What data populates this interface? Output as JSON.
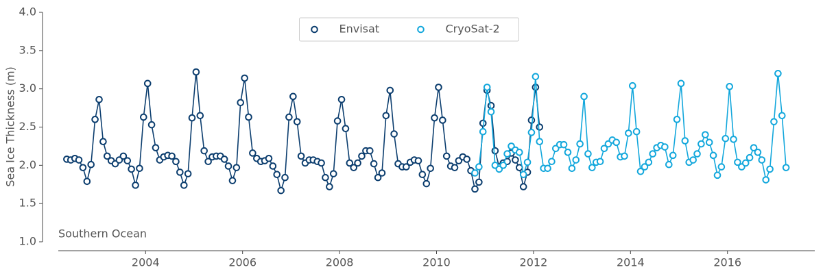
{
  "chart_data": {
    "type": "line",
    "ylabel": "Sea Ice Thickness (m)",
    "annotation": "Southern Ocean",
    "legend": "upper center",
    "xlim": [
      2002.2,
      2017.8
    ],
    "xticks": [
      2004,
      2006,
      2008,
      2010,
      2012,
      2014,
      2016
    ],
    "ylim": [
      1.0,
      4.0
    ],
    "yticks": [
      {
        "value": 1.0,
        "label": "1.0"
      },
      {
        "value": 1.5,
        "label": "1.5"
      },
      {
        "value": 2.0,
        "label": "2.0"
      },
      {
        "value": 2.5,
        "label": "2.5"
      },
      {
        "value": 3.0,
        "label": "3.0"
      },
      {
        "value": 3.5,
        "label": "3.5"
      },
      {
        "value": 4.0,
        "label": "4.0"
      }
    ],
    "series": [
      {
        "name": "Envisat",
        "color": "#0b3d6e",
        "x": [
          2002.375,
          2002.458,
          2002.542,
          2002.625,
          2002.708,
          2002.792,
          2002.875,
          2002.958,
          2003.042,
          2003.125,
          2003.208,
          2003.292,
          2003.375,
          2003.458,
          2003.542,
          2003.625,
          2003.708,
          2003.792,
          2003.875,
          2003.958,
          2004.042,
          2004.125,
          2004.208,
          2004.292,
          2004.375,
          2004.458,
          2004.542,
          2004.625,
          2004.708,
          2004.792,
          2004.875,
          2004.958,
          2005.042,
          2005.125,
          2005.208,
          2005.292,
          2005.375,
          2005.458,
          2005.542,
          2005.625,
          2005.708,
          2005.792,
          2005.875,
          2005.958,
          2006.042,
          2006.125,
          2006.208,
          2006.292,
          2006.375,
          2006.458,
          2006.542,
          2006.625,
          2006.708,
          2006.792,
          2006.875,
          2006.958,
          2007.042,
          2007.125,
          2007.208,
          2007.292,
          2007.375,
          2007.458,
          2007.542,
          2007.625,
          2007.708,
          2007.792,
          2007.875,
          2007.958,
          2008.042,
          2008.125,
          2008.208,
          2008.292,
          2008.375,
          2008.458,
          2008.542,
          2008.625,
          2008.708,
          2008.792,
          2008.875,
          2008.958,
          2009.042,
          2009.125,
          2009.208,
          2009.292,
          2009.375,
          2009.458,
          2009.542,
          2009.625,
          2009.708,
          2009.792,
          2009.875,
          2009.958,
          2010.042,
          2010.125,
          2010.208,
          2010.292,
          2010.375,
          2010.458,
          2010.542,
          2010.625,
          2010.708,
          2010.792,
          2010.875,
          2010.958,
          2011.042,
          2011.125,
          2011.208,
          2011.292,
          2011.375,
          2011.458,
          2011.542,
          2011.625,
          2011.708,
          2011.792,
          2011.875,
          2011.958,
          2012.042,
          2012.125
        ],
        "values": [
          2.08,
          2.07,
          2.09,
          2.07,
          1.97,
          1.79,
          2.01,
          2.6,
          2.86,
          2.31,
          2.12,
          2.06,
          2.02,
          2.07,
          2.12,
          2.06,
          1.95,
          1.74,
          1.96,
          2.63,
          3.07,
          2.53,
          2.23,
          2.07,
          2.11,
          2.13,
          2.12,
          2.05,
          1.91,
          1.74,
          1.89,
          2.62,
          3.22,
          2.65,
          2.19,
          2.05,
          2.11,
          2.12,
          2.12,
          2.08,
          1.99,
          1.8,
          1.97,
          2.82,
          3.14,
          2.63,
          2.16,
          2.09,
          2.05,
          2.06,
          2.09,
          1.99,
          1.88,
          1.67,
          1.84,
          2.63,
          2.9,
          2.57,
          2.12,
          2.03,
          2.07,
          2.07,
          2.05,
          2.03,
          1.84,
          1.72,
          1.89,
          2.58,
          2.86,
          2.48,
          2.03,
          1.97,
          2.03,
          2.12,
          2.19,
          2.19,
          2.02,
          1.84,
          1.9,
          2.65,
          2.98,
          2.41,
          2.02,
          1.98,
          1.98,
          2.04,
          2.07,
          2.06,
          1.88,
          1.76,
          1.96,
          2.62,
          3.02,
          2.59,
          2.12,
          1.99,
          1.97,
          2.06,
          2.11,
          2.08,
          1.93,
          1.69,
          1.78,
          2.55,
          2.98,
          2.78,
          2.19,
          1.98,
          2.03,
          2.05,
          2.16,
          2.07,
          1.97,
          1.72,
          1.91,
          2.59,
          3.02,
          2.5
        ]
      },
      {
        "name": "CryoSat-2",
        "color": "#12a7dc",
        "x": [
          2010.792,
          2010.875,
          2010.958,
          2011.042,
          2011.125,
          2011.208,
          2011.292,
          2011.375,
          2011.458,
          2011.542,
          2011.625,
          2011.708,
          2011.792,
          2011.875,
          2011.958,
          2012.042,
          2012.125,
          2012.208,
          2012.292,
          2012.375,
          2012.458,
          2012.542,
          2012.625,
          2012.708,
          2012.792,
          2012.875,
          2012.958,
          2013.042,
          2013.125,
          2013.208,
          2013.292,
          2013.375,
          2013.458,
          2013.542,
          2013.625,
          2013.708,
          2013.792,
          2013.875,
          2013.958,
          2014.042,
          2014.125,
          2014.208,
          2014.292,
          2014.375,
          2014.458,
          2014.542,
          2014.625,
          2014.708,
          2014.792,
          2014.875,
          2014.958,
          2015.042,
          2015.125,
          2015.208,
          2015.292,
          2015.375,
          2015.458,
          2015.542,
          2015.625,
          2015.708,
          2015.792,
          2015.875,
          2015.958,
          2016.042,
          2016.125,
          2016.208,
          2016.292,
          2016.375,
          2016.458,
          2016.542,
          2016.625,
          2016.708,
          2016.792,
          2016.875,
          2016.958,
          2017.042,
          2017.125,
          2017.208
        ],
        "values": [
          1.9,
          1.98,
          2.44,
          3.02,
          2.7,
          2.0,
          1.95,
          2.0,
          2.15,
          2.25,
          2.2,
          2.17,
          1.88,
          2.04,
          2.43,
          3.16,
          2.31,
          1.96,
          1.96,
          2.05,
          2.22,
          2.27,
          2.27,
          2.17,
          1.96,
          2.07,
          2.28,
          2.9,
          2.15,
          1.97,
          2.04,
          2.05,
          2.22,
          2.28,
          2.33,
          2.3,
          2.11,
          2.12,
          2.42,
          3.04,
          2.44,
          1.92,
          1.98,
          2.04,
          2.15,
          2.23,
          2.26,
          2.24,
          2.01,
          2.13,
          2.6,
          3.07,
          2.32,
          2.04,
          2.07,
          2.15,
          2.28,
          2.4,
          2.3,
          2.13,
          1.87,
          1.98,
          2.35,
          3.03,
          2.34,
          2.04,
          1.98,
          2.03,
          2.1,
          2.23,
          2.17,
          2.07,
          1.81,
          1.95,
          2.57,
          3.2,
          2.65,
          1.97
        ]
      }
    ]
  }
}
